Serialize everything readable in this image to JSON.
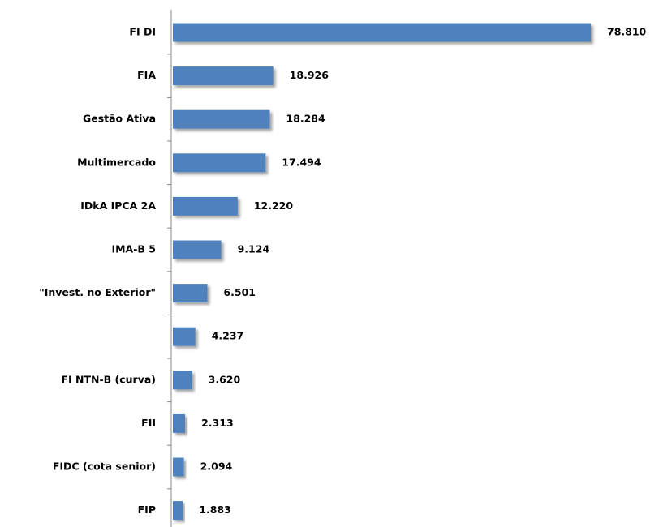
{
  "chart_data": {
    "type": "barh",
    "categories": [
      "FI DI",
      "FIA",
      "Gestão Ativa",
      "Multimercado",
      "IDkA IPCA 2A",
      "IMA-B 5",
      "\"Invest. no Exterior\"",
      null,
      "FI NTN-B (curva)",
      "FII",
      "FIDC (cota senior)",
      "FIP"
    ],
    "values": [
      78810,
      18926,
      18284,
      17494,
      12220,
      9124,
      6501,
      4237,
      3620,
      2313,
      2094,
      1883
    ],
    "value_labels": [
      "78.810",
      "18.926",
      "18.284",
      "17.494",
      "12.220",
      "9.124",
      "6.501",
      "4.237",
      "3.620",
      "2.313",
      "2.094",
      "1.883"
    ],
    "color": "#4f81bd"
  }
}
